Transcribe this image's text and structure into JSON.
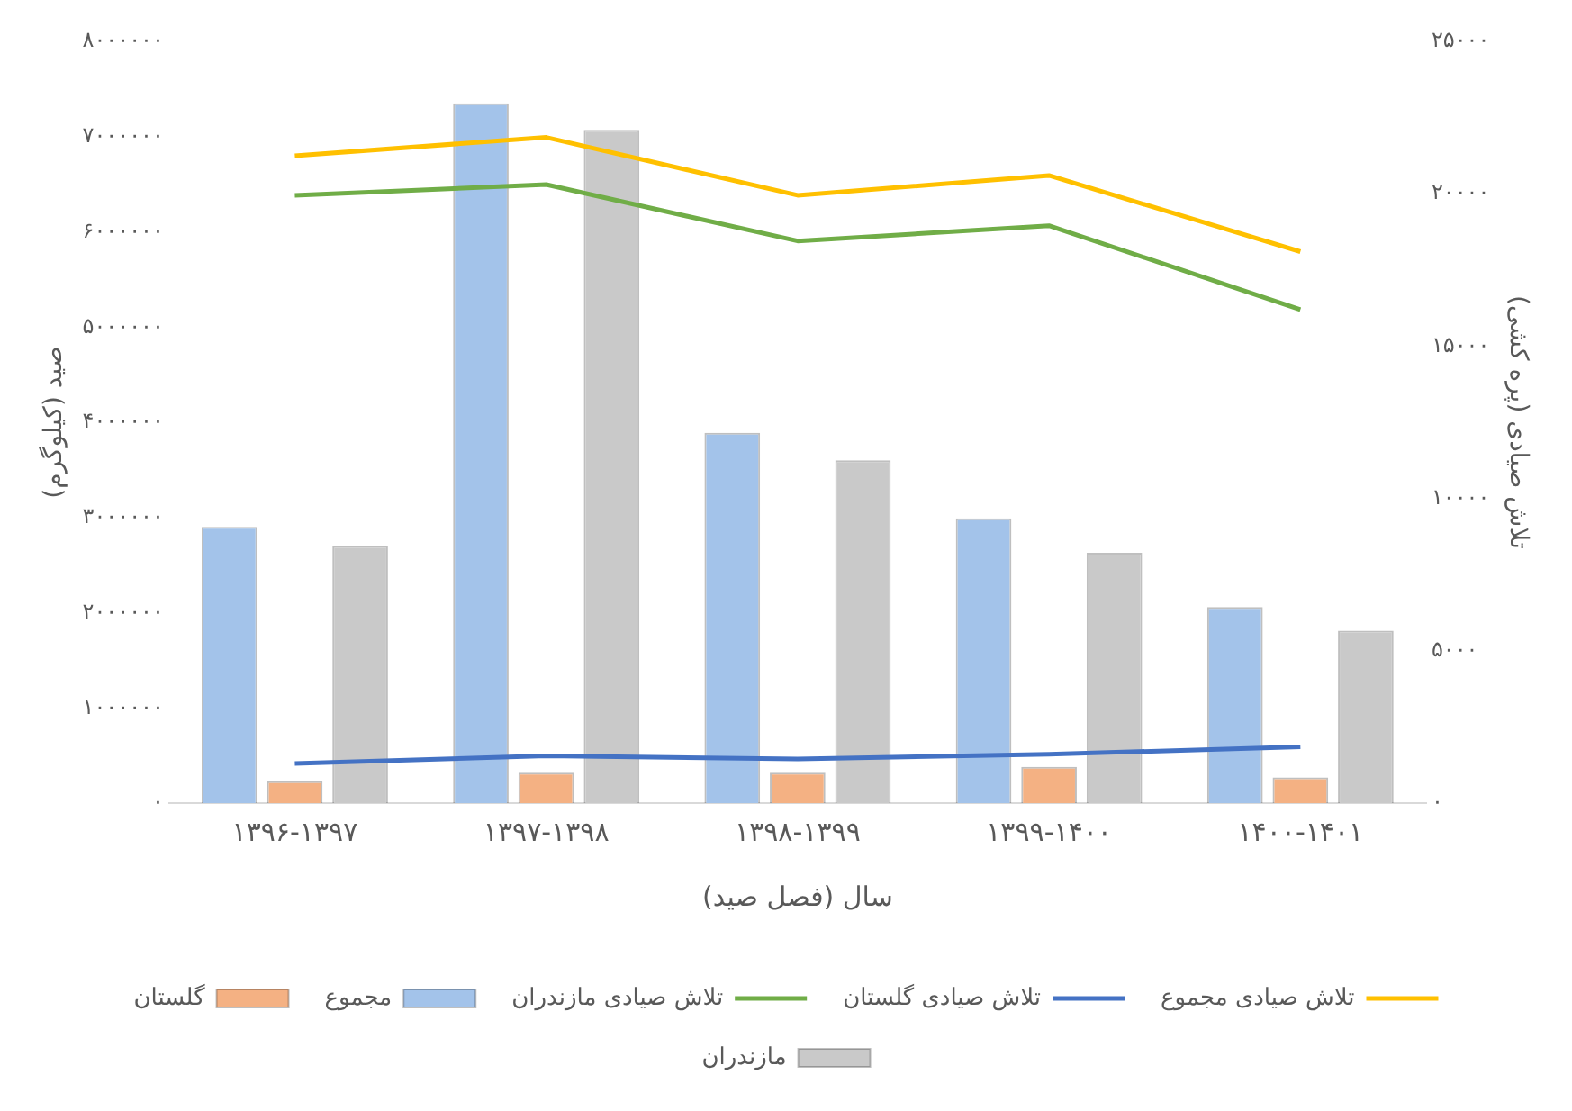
{
  "chart_data": {
    "type": "bar",
    "xlabel": "سال (فصل صید)",
    "ylabel": "صید (کیلوگرم)",
    "y2label": "تلاش صیادی (پره کشی)",
    "categories": [
      "۱۳۹۶-۱۳۹۷",
      "۱۳۹۷-۱۳۹۸",
      "۱۳۹۸-۱۳۹۹",
      "۱۳۹۹-۱۴۰۰",
      "۱۴۰۰-۱۴۰۱"
    ],
    "series": [
      {
        "name": "مجموع",
        "color": "#a3c3ea",
        "values": [
          2900000,
          7350000,
          3890000,
          2990000,
          2060000
        ]
      },
      {
        "name": "گلستان",
        "color": "#f4b183",
        "values": [
          230000,
          320000,
          320000,
          380000,
          270000
        ]
      },
      {
        "name": "مازندران",
        "color": "#c9c9c9",
        "values": [
          2700000,
          7070000,
          3600000,
          2630000,
          1810000
        ]
      },
      {
        "name": "تلاش صیادی مجموع",
        "type": "line",
        "axis": "y2",
        "color": "#ffc000",
        "values": [
          21250,
          21850,
          19950,
          20600,
          18100
        ]
      },
      {
        "name": "تلاش صیادی گلستان",
        "type": "line",
        "axis": "y2",
        "color": "#4472c4",
        "values": [
          1300,
          1550,
          1450,
          1600,
          1850
        ]
      },
      {
        "name": "تلاش صیادی مازندران",
        "type": "line",
        "axis": "y2",
        "color": "#70ad47",
        "values": [
          19950,
          20300,
          18450,
          18950,
          16200
        ]
      }
    ],
    "ylim": [
      0,
      8000000
    ],
    "yticks": [
      {
        "value": 0,
        "label": "۰"
      },
      {
        "value": 1000000,
        "label": "۱۰۰۰۰۰۰"
      },
      {
        "value": 2000000,
        "label": "۲۰۰۰۰۰۰"
      },
      {
        "value": 3000000,
        "label": "۳۰۰۰۰۰۰"
      },
      {
        "value": 4000000,
        "label": "۴۰۰۰۰۰۰"
      },
      {
        "value": 5000000,
        "label": "۵۰۰۰۰۰۰"
      },
      {
        "value": 6000000,
        "label": "۶۰۰۰۰۰۰"
      },
      {
        "value": 7000000,
        "label": "۷۰۰۰۰۰۰"
      },
      {
        "value": 8000000,
        "label": "۸۰۰۰۰۰۰"
      }
    ],
    "y2lim": [
      0,
      25000
    ],
    "y2ticks": [
      {
        "value": 0,
        "label": "۰"
      },
      {
        "value": 5000,
        "label": "۵۰۰۰"
      },
      {
        "value": 10000,
        "label": "۱۰۰۰۰"
      },
      {
        "value": 15000,
        "label": "۱۵۰۰۰"
      },
      {
        "value": 20000,
        "label": "۲۰۰۰۰"
      },
      {
        "value": 25000,
        "label": "۲۵۰۰۰"
      }
    ],
    "grid": false,
    "legend": "bottom",
    "marker": "none"
  }
}
